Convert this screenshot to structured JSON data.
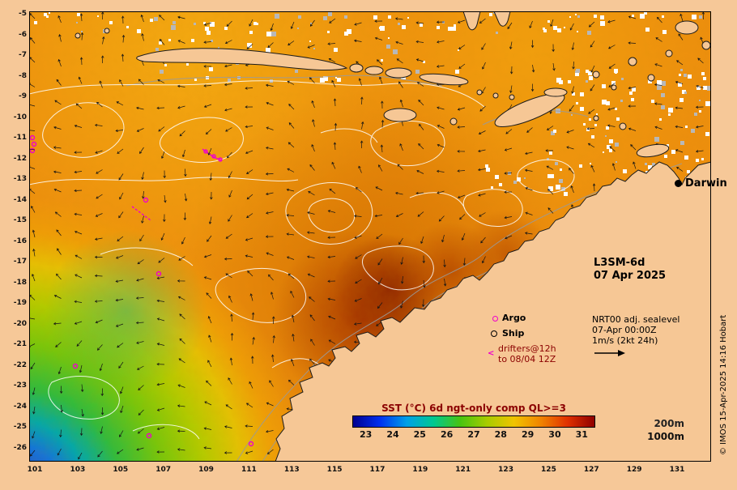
{
  "figure": {
    "background": "#f6c898",
    "land_color": "#f6c795",
    "accent_magenta": "#ee00cc",
    "accent_maroon": "#8b0000"
  },
  "axes": {
    "x_ticks": [
      "101",
      "103",
      "105",
      "107",
      "109",
      "111",
      "113",
      "115",
      "117",
      "119",
      "121",
      "123",
      "125",
      "127",
      "129",
      "131"
    ],
    "y_ticks": [
      "-5",
      "-6",
      "-7",
      "-8",
      "-9",
      "-10",
      "-11",
      "-12",
      "-13",
      "-14",
      "-15",
      "-16",
      "-17",
      "-18",
      "-19",
      "-20",
      "-21",
      "-22",
      "-23",
      "-24",
      "-25",
      "-26"
    ]
  },
  "annotations": {
    "city": "Darwin",
    "product_name": "L3SM-6d",
    "product_date": "07 Apr 2025",
    "legend_argo": "Argo",
    "legend_ship": "Ship",
    "legend_drifters_1": "drifters@12h",
    "legend_drifters_2": "to 08/04 12Z",
    "sealevel_1": "NRT00 adj. sealevel",
    "sealevel_2": "07-Apr 00:00Z",
    "sealevel_3": "1m/s (2kt 24h)",
    "depth_1": "200m",
    "depth_2": "1000m",
    "credit": "© IMOS 15-Apr-2025 14:16 Hobart"
  },
  "colorbar": {
    "title": "SST (°C) 6d ngt-only comp QL>=3",
    "ticks": [
      "23",
      "24",
      "25",
      "26",
      "27",
      "28",
      "29",
      "30",
      "31"
    ],
    "gradient": [
      "#000090",
      "#0030f0",
      "#00a0e8",
      "#00c890",
      "#48c410",
      "#a8cc00",
      "#f0c400",
      "#f08400",
      "#e03000",
      "#8f0000"
    ]
  }
}
